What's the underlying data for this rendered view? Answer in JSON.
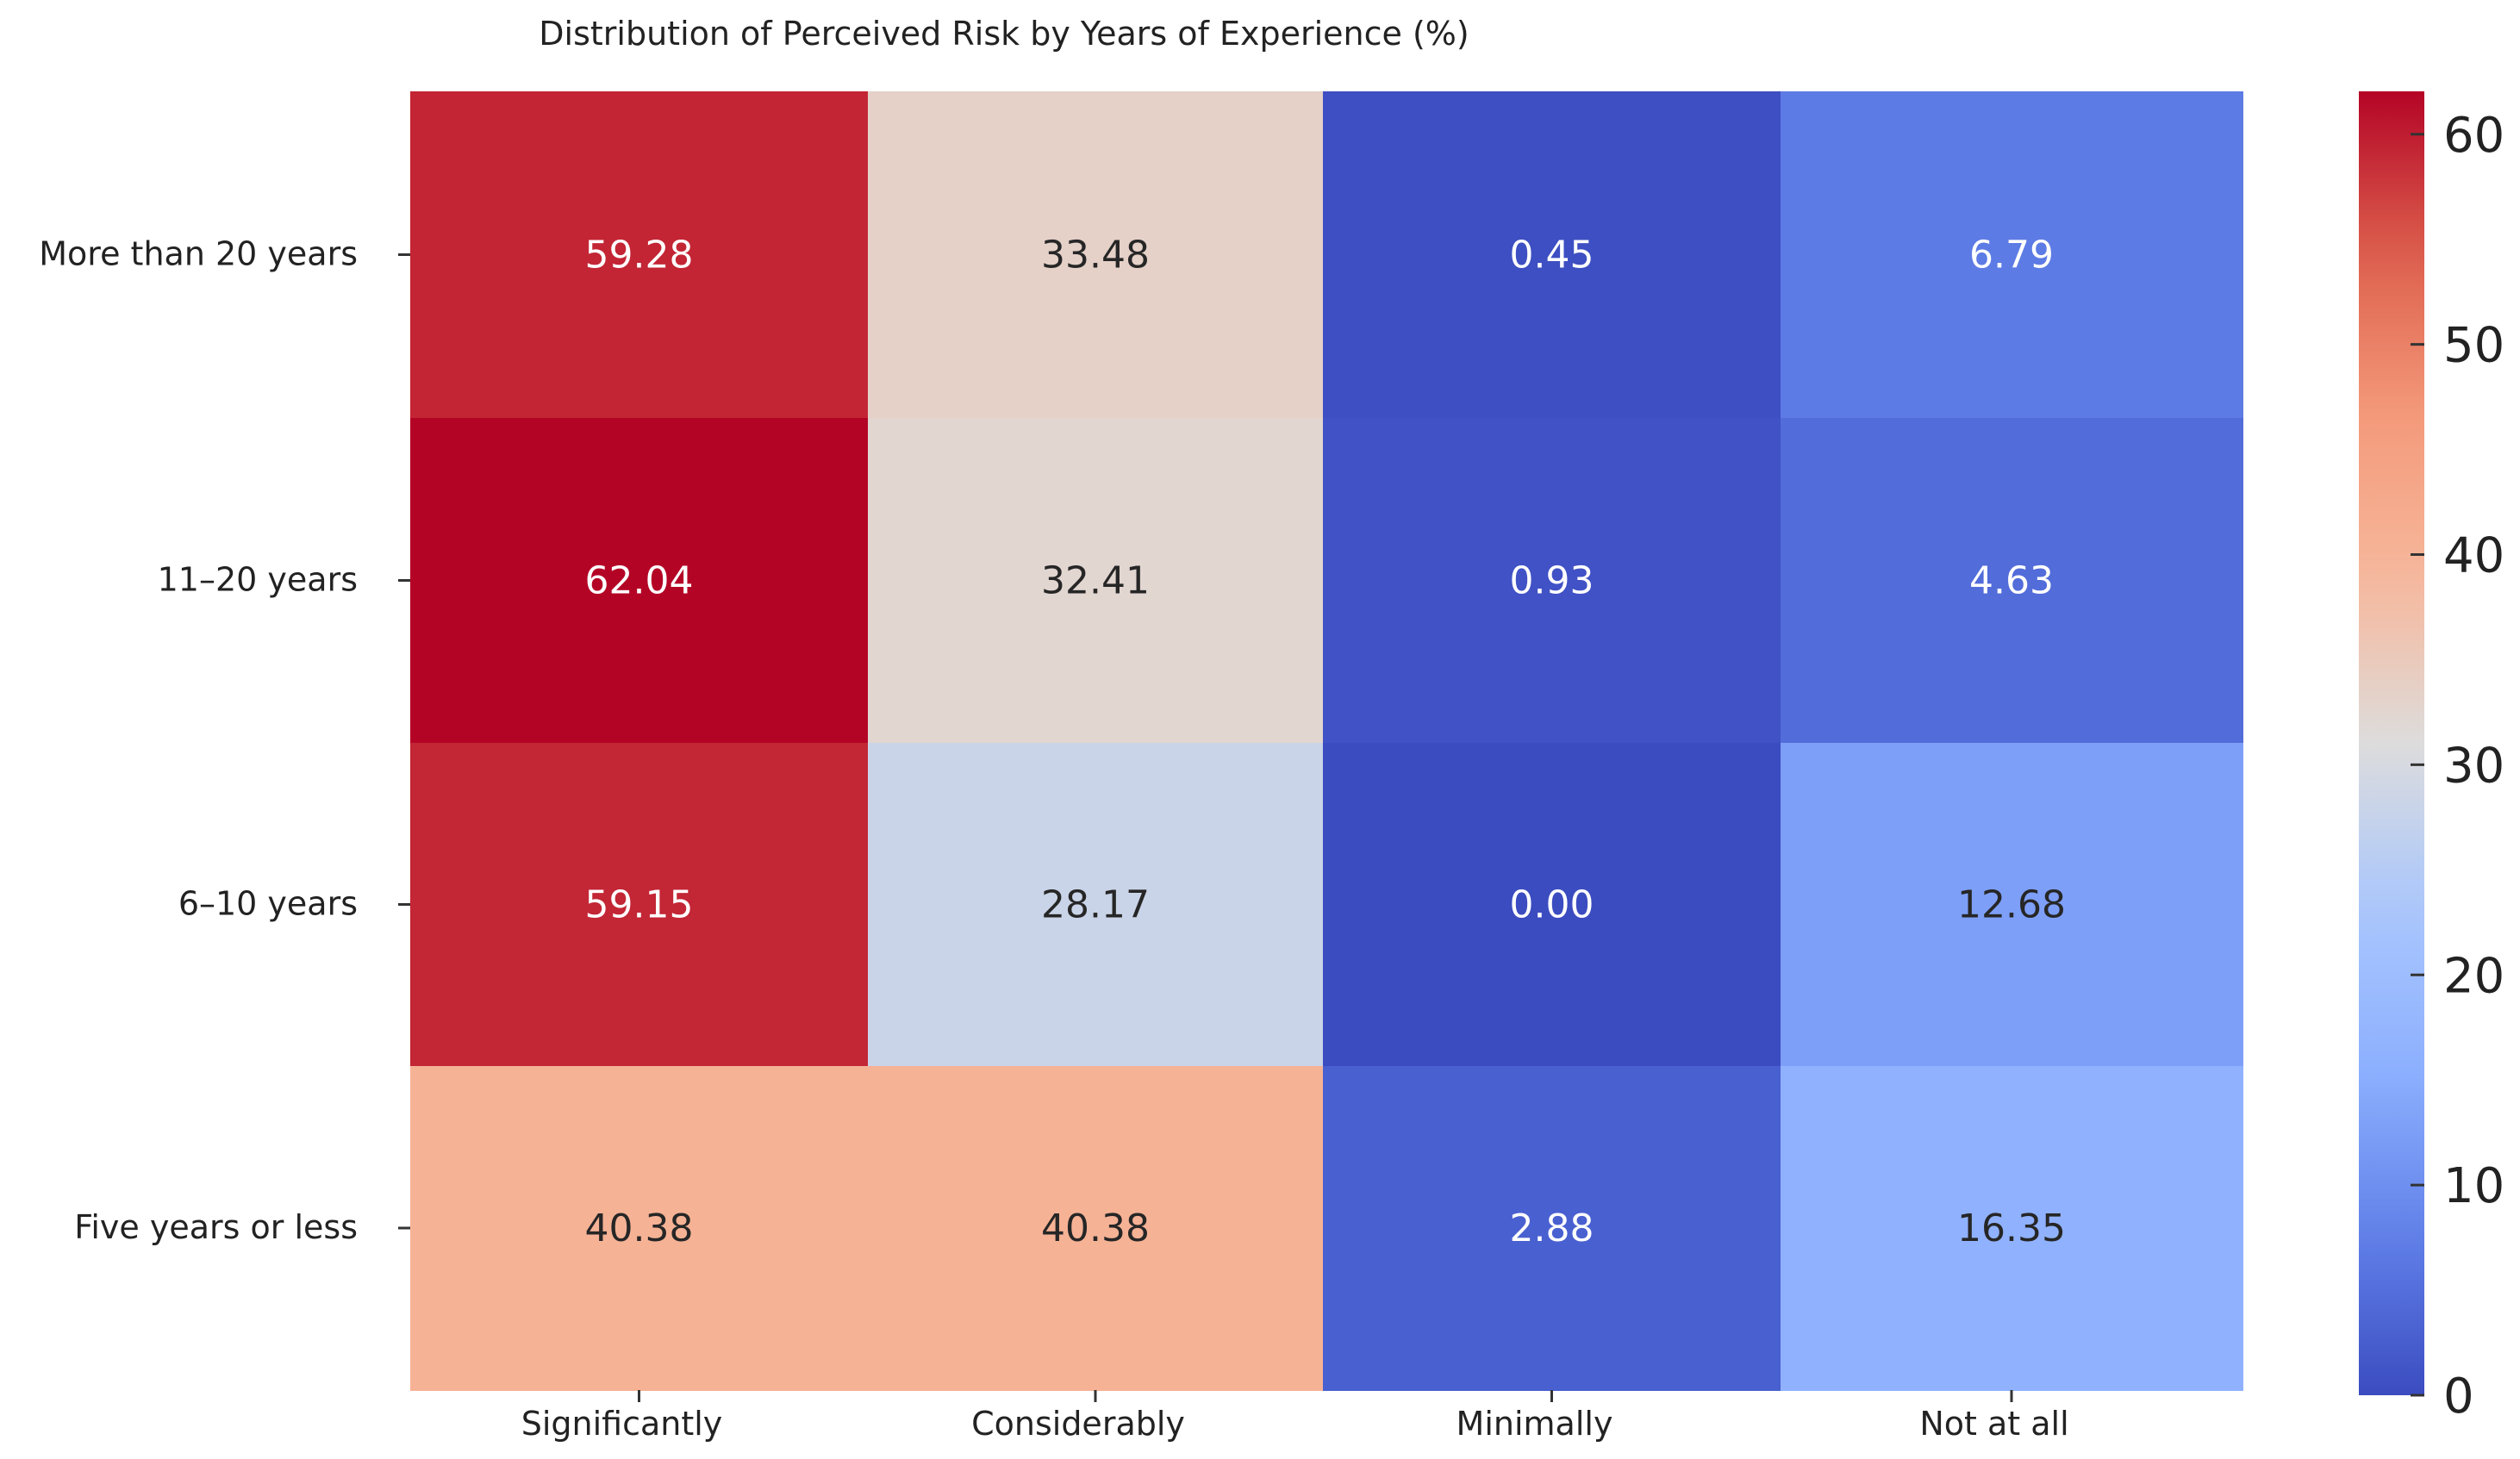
{
  "chart_data": {
    "type": "heatmap",
    "title": "Distribution of Perceived Risk by Years of Experience (%)",
    "xlabel": "",
    "ylabel": "",
    "x_categories": [
      "Significantly",
      "Considerably",
      "Minimally",
      "Not at all"
    ],
    "y_categories": [
      "More than 20 years",
      "11–20 years",
      "6–10 years",
      "Five years or less"
    ],
    "values": [
      [
        59.28,
        33.48,
        0.45,
        6.79
      ],
      [
        62.04,
        32.41,
        0.93,
        4.63
      ],
      [
        59.15,
        28.17,
        0.0,
        12.68
      ],
      [
        40.38,
        40.38,
        2.88,
        16.35
      ]
    ],
    "value_labels": [
      [
        "59.28",
        "33.48",
        "0.45",
        "6.79"
      ],
      [
        "62.04",
        "32.41",
        "0.93",
        "4.63"
      ],
      [
        "59.15",
        "28.17",
        "0.00",
        "12.68"
      ],
      [
        "40.38",
        "40.38",
        "2.88",
        "16.35"
      ]
    ],
    "colormap": "coolwarm",
    "vmin": 0,
    "vmax": 62.04,
    "colorbar_ticks": [
      0,
      10,
      20,
      30,
      40,
      50,
      60
    ],
    "colorbar_tick_labels": [
      "0",
      "10",
      "20",
      "30",
      "40",
      "50",
      "60"
    ],
    "grid": false
  }
}
